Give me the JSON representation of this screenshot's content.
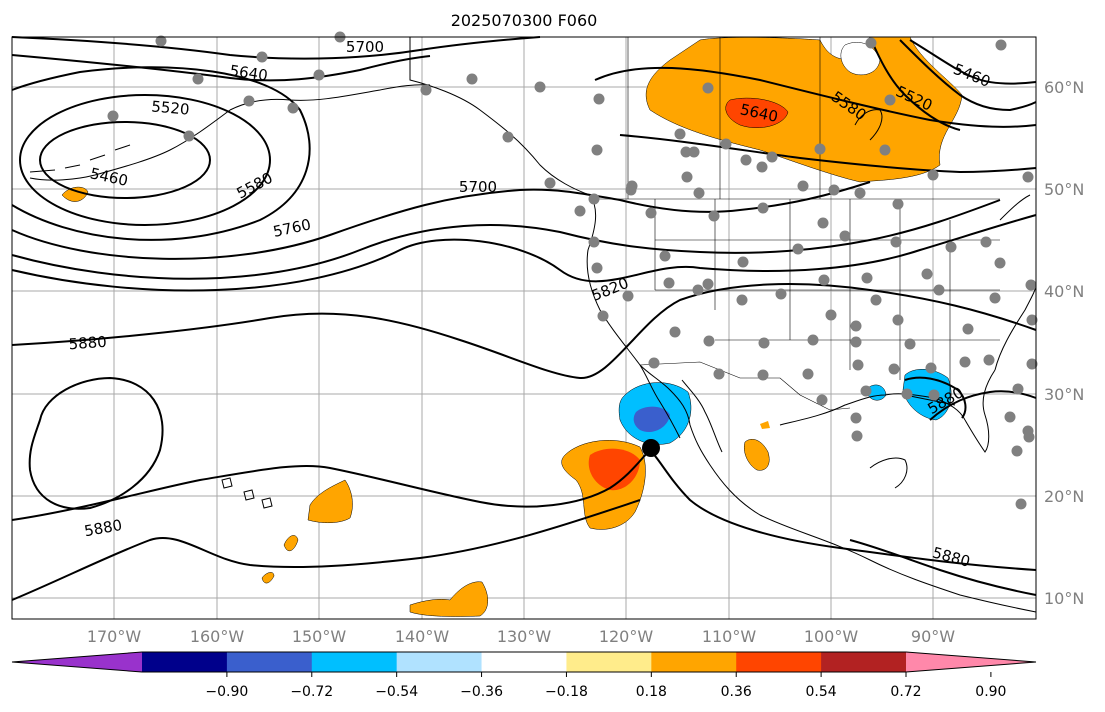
{
  "title": "2025070300 F060",
  "lat_labels": [
    "10°N",
    "20°N",
    "30°N",
    "40°N",
    "50°N",
    "60°N"
  ],
  "lon_labels": [
    "170°W",
    "160°W",
    "150°W",
    "140°W",
    "130°W",
    "120°W",
    "110°W",
    "100°W",
    "90°W"
  ],
  "colorbar": {
    "tick_labels": [
      "−0.90",
      "−0.72",
      "−0.54",
      "−0.36",
      "−0.18",
      "0.18",
      "0.36",
      "0.54",
      "0.72",
      "0.90"
    ],
    "colors": [
      "#9932CC",
      "#00008B",
      "#3A5FCD",
      "#00BFFF",
      "#B0E2FF",
      "#FFFFFF",
      "#FFEC8B",
      "#FFA500",
      "#FF4500",
      "#B22222",
      "#FF88AA"
    ]
  },
  "contour_labels": [
    "5700",
    "5640",
    "5520",
    "5460",
    "5580",
    "5700",
    "5760",
    "5820",
    "5880",
    "5880",
    "5640",
    "5580",
    "5520",
    "5460",
    "5880",
    "5880"
  ],
  "colors": {
    "orange": "#FFA500",
    "red": "#FF4500",
    "light_blue": "#00BFFF",
    "blue": "#3A5FCD",
    "station": "#808080",
    "grid": "#A9A9A9"
  }
}
